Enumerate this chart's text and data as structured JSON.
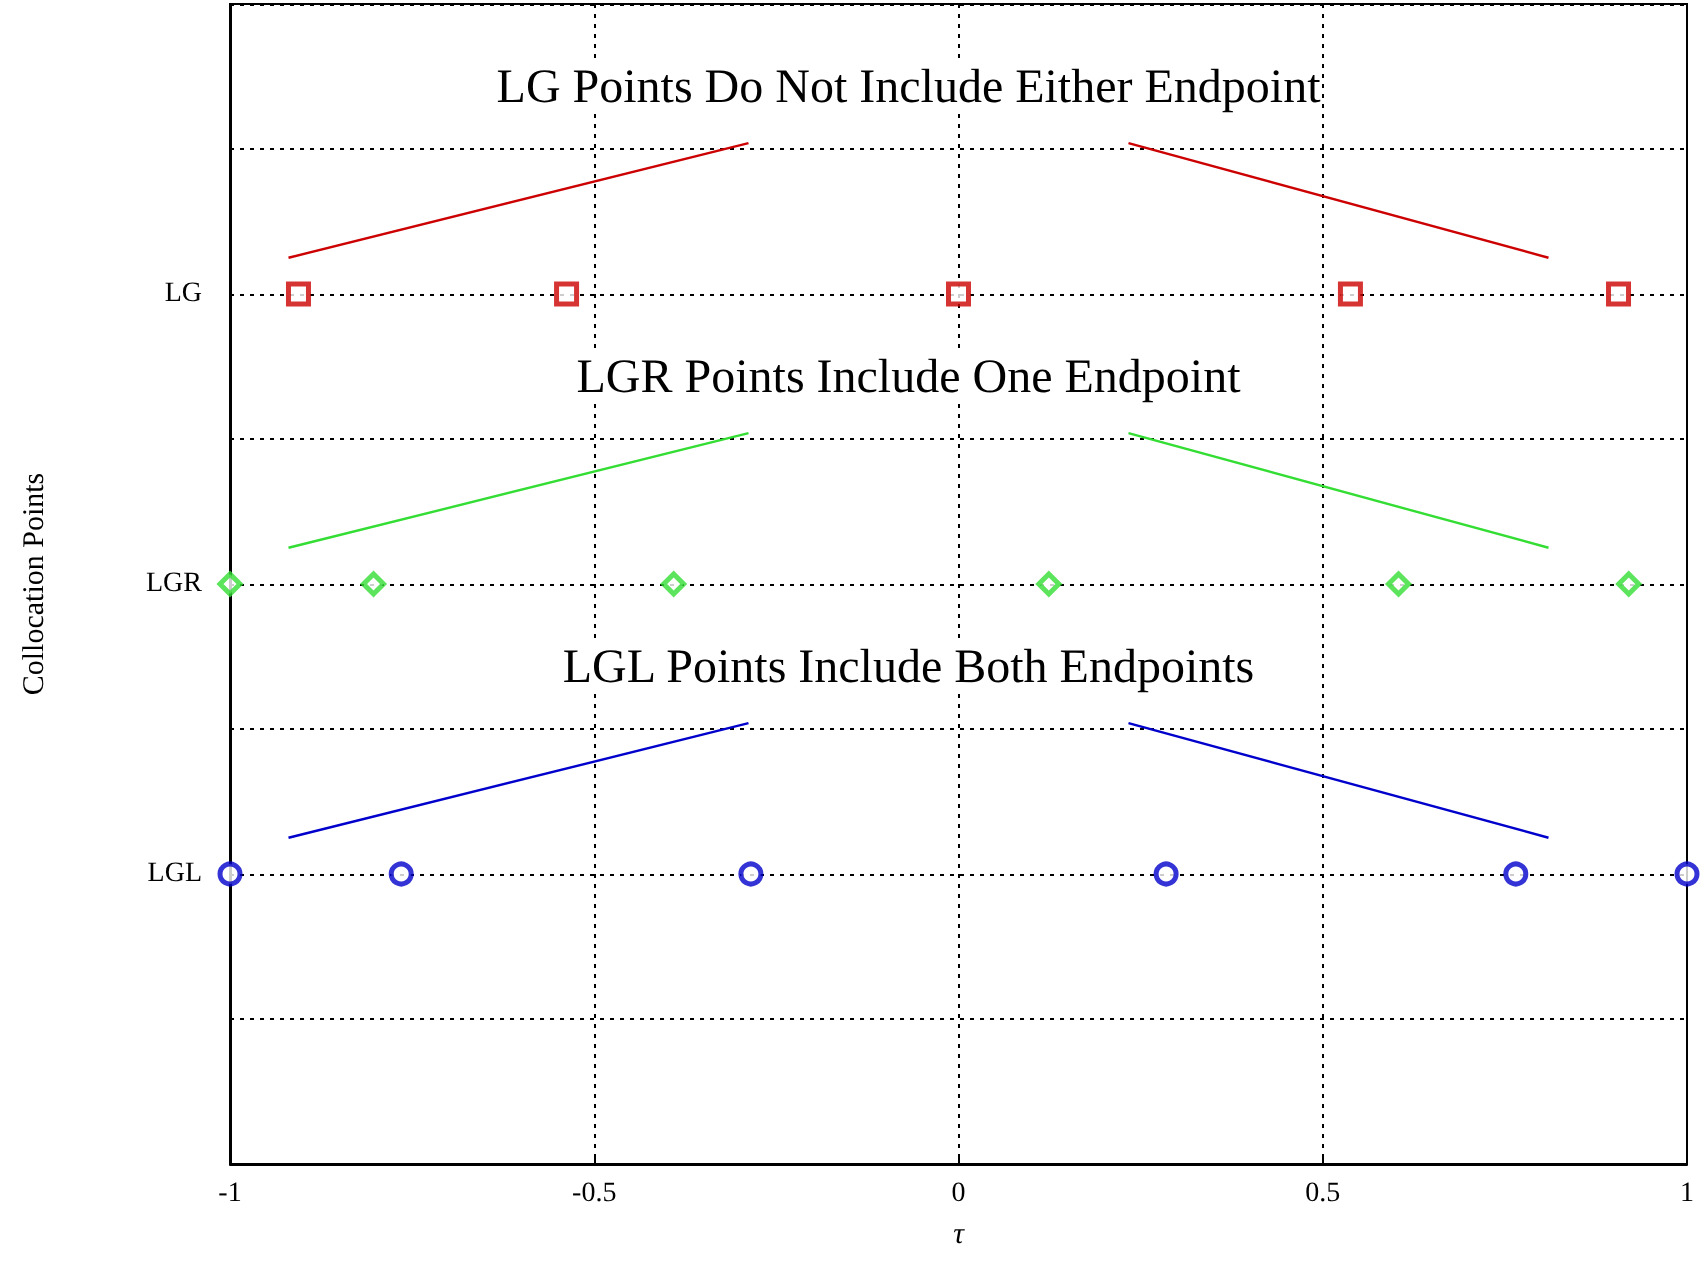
{
  "chart_data": {
    "type": "scatter",
    "orientation": "horizontal",
    "xlabel": "τ",
    "ylabel": "Collocation Points",
    "categories": [
      null,
      null,
      "LG",
      null,
      "LGR",
      null,
      "LGL",
      null,
      null
    ],
    "xlim": [
      -1,
      1
    ],
    "xticks": [
      -1,
      -0.5,
      0,
      0.5,
      1
    ],
    "grid": true,
    "series": [
      {
        "color": "#cc0000",
        "marker": "square",
        "x": [
          "LG",
          "LG",
          "LG",
          "LG",
          "LG"
        ],
        "values": [
          -0.906,
          -0.538,
          0,
          0.538,
          0.906
        ]
      },
      {
        "color": "#33dd33",
        "marker": "diamond",
        "x": [
          "LGR",
          "LGR",
          "LGR",
          "LGR",
          "LGR",
          "LGR"
        ],
        "values": [
          -1,
          -0.803,
          -0.391,
          0.124,
          0.604,
          0.92
        ]
      },
      {
        "color": "#0000cc",
        "marker": "circle",
        "x": [
          "LGL",
          "LGL",
          "LGL",
          "LGL",
          "LGL",
          "LGL"
        ],
        "values": [
          -1,
          -0.765,
          -0.285,
          0.285,
          0.765,
          1
        ]
      }
    ],
    "annotations": [
      "LG Points Do Not Include Either Endpoint",
      "LGR Points Include One Endpoint",
      "LGL Points Include Both Endpoints"
    ]
  }
}
